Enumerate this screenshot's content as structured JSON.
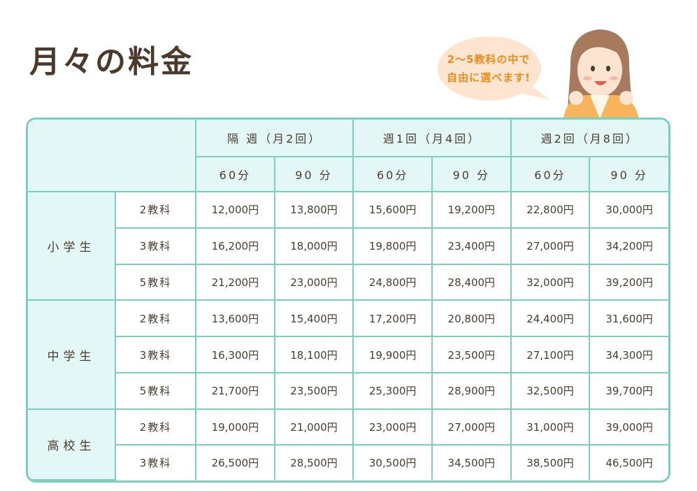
{
  "page": {
    "title": "月々の料金"
  },
  "bubble": {
    "line1": "2〜5教科の中で",
    "line2": "自由に選べます!"
  },
  "table": {
    "frequency_headers": [
      "隔 週（月2回）",
      "週1回（月4回）",
      "週2回（月8回）"
    ],
    "duration_headers": [
      "60分",
      "90 分",
      "60分",
      "90 分",
      "60分",
      "90 分"
    ],
    "grades": [
      {
        "name": "小学生",
        "rows": [
          {
            "subjects": "2教科",
            "prices": [
              "12,000円",
              "13,800円",
              "15,600円",
              "19,200円",
              "22,800円",
              "30,000円"
            ]
          },
          {
            "subjects": "3教科",
            "prices": [
              "16,200円",
              "18,000円",
              "19,800円",
              "23,400円",
              "27,000円",
              "34,200円"
            ]
          },
          {
            "subjects": "5教科",
            "prices": [
              "21,200円",
              "23,000円",
              "24,800円",
              "28,400円",
              "32,000円",
              "39,200円"
            ]
          }
        ]
      },
      {
        "name": "中学生",
        "rows": [
          {
            "subjects": "2教科",
            "prices": [
              "13,600円",
              "15,400円",
              "17,200円",
              "20,800円",
              "24,400円",
              "31,600円"
            ]
          },
          {
            "subjects": "3教科",
            "prices": [
              "16,300円",
              "18,100円",
              "19,900円",
              "23,500円",
              "27,100円",
              "34,300円"
            ]
          },
          {
            "subjects": "5教科",
            "prices": [
              "21,700円",
              "23,500円",
              "25,300円",
              "28,900円",
              "32,500円",
              "39,700円"
            ]
          }
        ]
      },
      {
        "name": "高校生",
        "rows": [
          {
            "subjects": "2教科",
            "prices": [
              "19,000円",
              "21,000円",
              "23,000円",
              "27,000円",
              "31,000円",
              "39,000円"
            ]
          },
          {
            "subjects": "3教科",
            "prices": [
              "26,500円",
              "28,500円",
              "30,500円",
              "34,500円",
              "38,500円",
              "46,500円"
            ]
          }
        ]
      }
    ]
  },
  "colors": {
    "border": "#7bcfbe",
    "header_bg": "#e3f8f6",
    "title": "#4b3a2c",
    "bubble_text": "#f08a1c",
    "bubble_bg": "#fde5cf"
  },
  "icons": {
    "illustration": "girl-cheering-icon"
  }
}
